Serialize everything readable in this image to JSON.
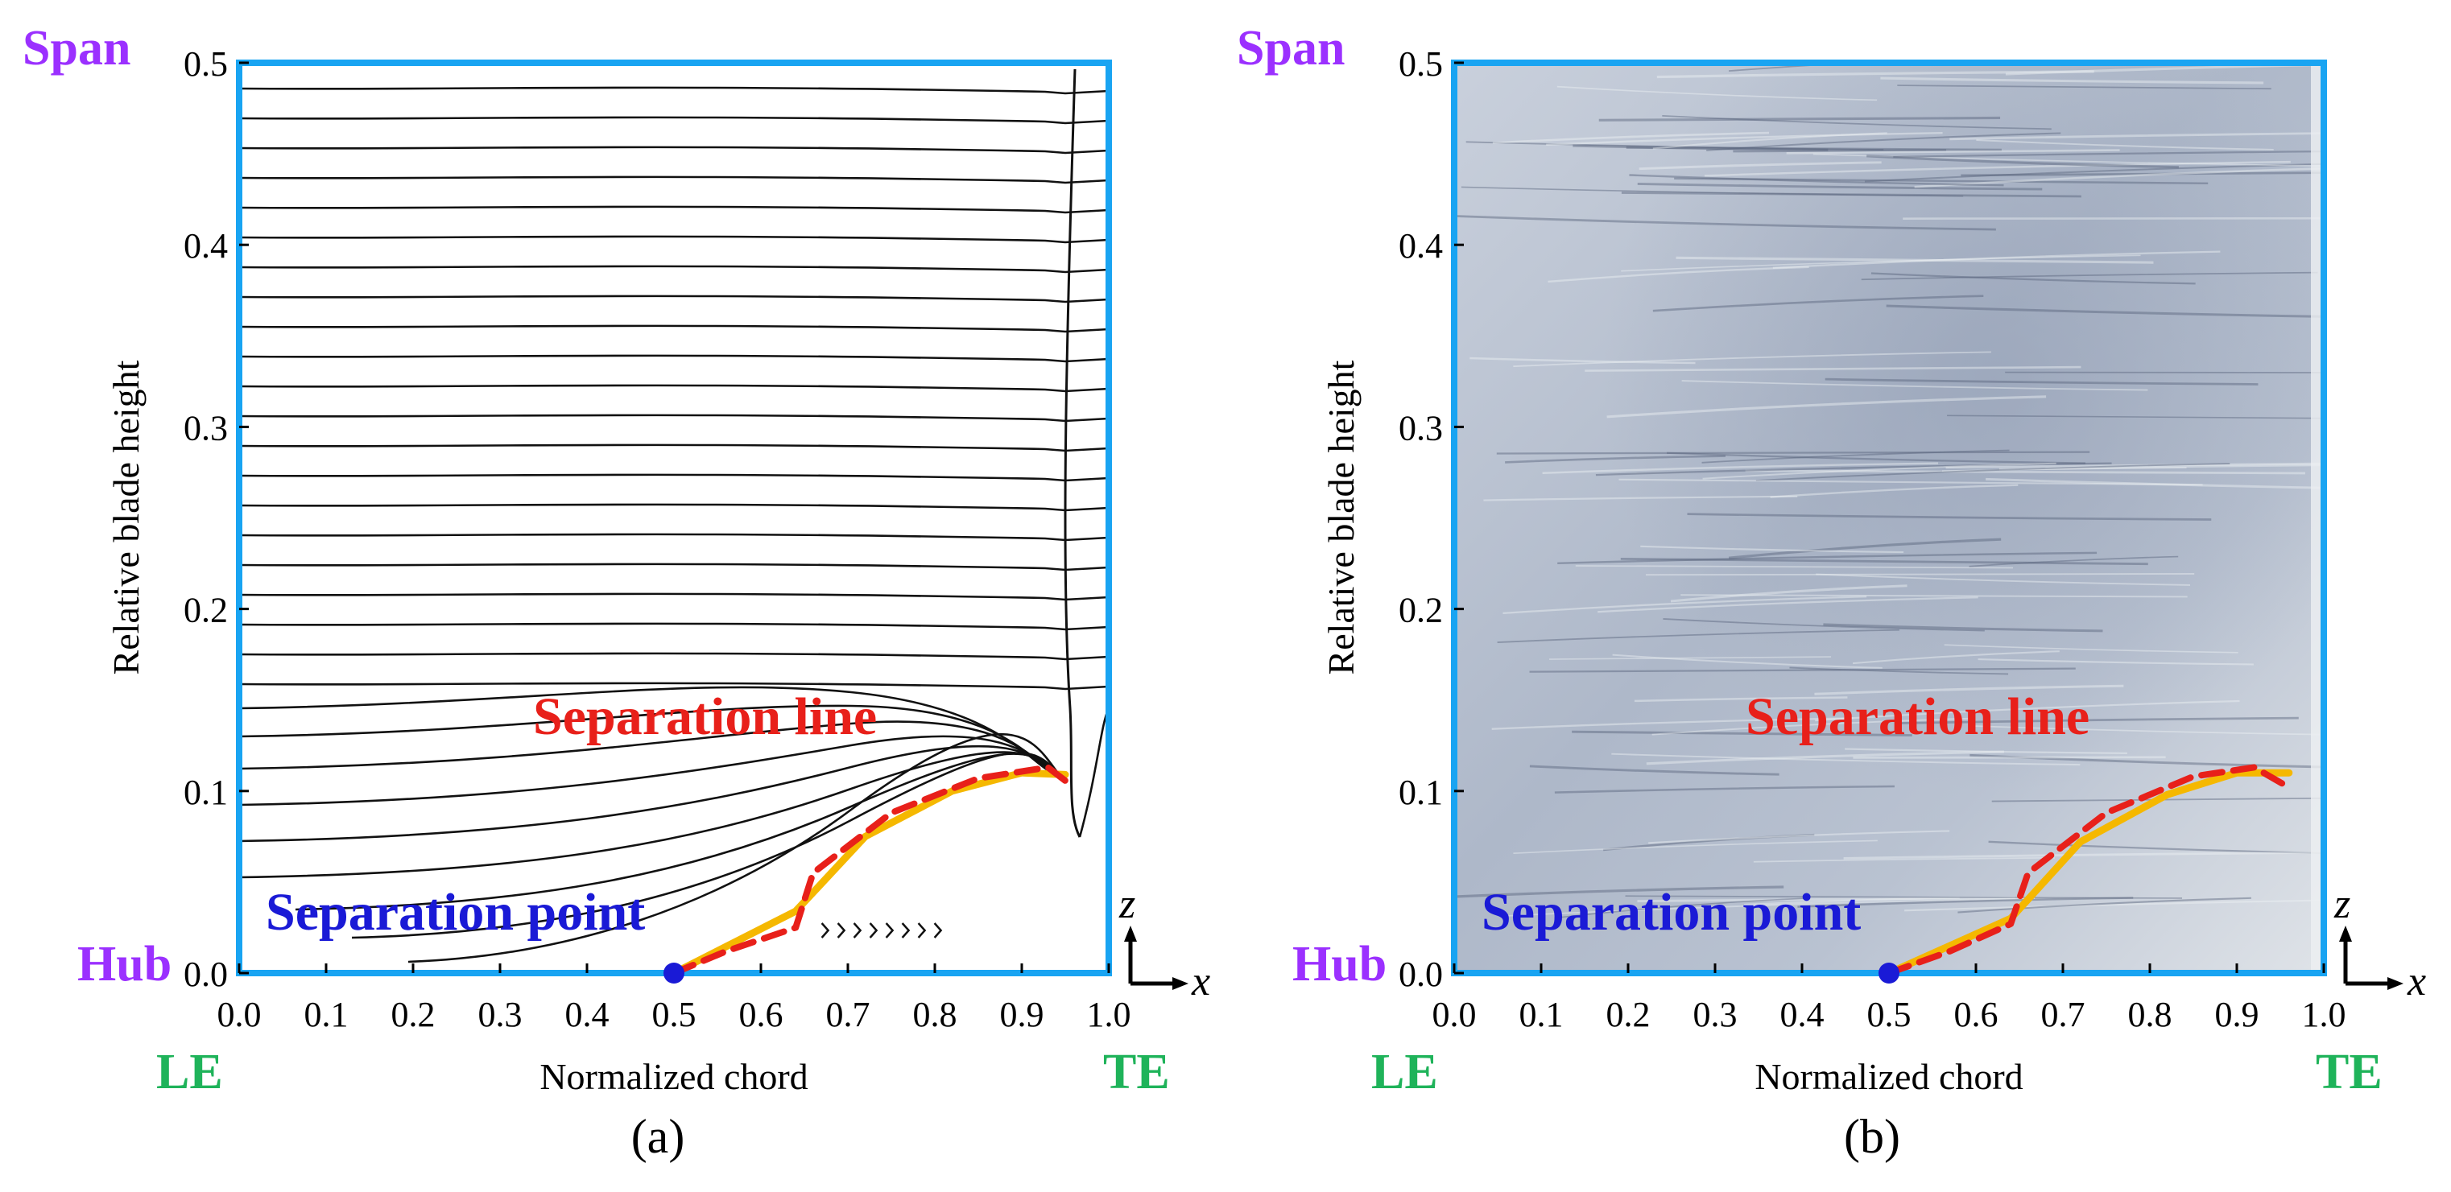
{
  "chart_data": [
    {
      "type": "line",
      "panel_label": "(a)",
      "xlabel": "Normalized chord",
      "ylabel": "Relative blade height",
      "xlim": [
        0.0,
        1.0
      ],
      "ylim": [
        0.0,
        0.5
      ],
      "xticks": [
        "0.0",
        "0.1",
        "0.2",
        "0.3",
        "0.4",
        "0.5",
        "0.6",
        "0.7",
        "0.8",
        "0.9",
        "1.0"
      ],
      "yticks": [
        "0.0",
        "0.1",
        "0.2",
        "0.3",
        "0.4",
        "0.5"
      ],
      "corner_labels": {
        "span": "Span",
        "hub": "Hub",
        "le": "LE",
        "te": "TE"
      },
      "annotations": {
        "separation_line": "Separation line",
        "separation_point": "Separation point"
      },
      "axes_indicator": {
        "vertical": "z",
        "horizontal": "x"
      },
      "background": "CFD surface streamlines",
      "separation_point": {
        "x": 0.5,
        "y": 0.0
      },
      "series": [
        {
          "name": "Separation line (yellow)",
          "color": "#f5b800",
          "x": [
            0.5,
            0.64,
            0.72,
            0.82,
            0.9,
            0.95
          ],
          "y": [
            0.0,
            0.034,
            0.075,
            0.1,
            0.11,
            0.109
          ]
        },
        {
          "name": "Separation line (red dashed)",
          "color": "#e8201a",
          "x": [
            0.5,
            0.56,
            0.64,
            0.66,
            0.75,
            0.85,
            0.93,
            0.96
          ],
          "y": [
            0.0,
            0.012,
            0.025,
            0.055,
            0.088,
            0.107,
            0.113,
            0.102
          ]
        }
      ]
    },
    {
      "type": "line",
      "panel_label": "(b)",
      "xlabel": "Normalized chord",
      "ylabel": "Relative blade height",
      "xlim": [
        0.0,
        1.0
      ],
      "ylim": [
        0.0,
        0.5
      ],
      "xticks": [
        "0.0",
        "0.1",
        "0.2",
        "0.3",
        "0.4",
        "0.5",
        "0.6",
        "0.7",
        "0.8",
        "0.9",
        "1.0"
      ],
      "yticks": [
        "0.0",
        "0.1",
        "0.2",
        "0.3",
        "0.4",
        "0.5"
      ],
      "corner_labels": {
        "span": "Span",
        "hub": "Hub",
        "le": "LE",
        "te": "TE"
      },
      "annotations": {
        "separation_line": "Separation line",
        "separation_point": "Separation point"
      },
      "axes_indicator": {
        "vertical": "z",
        "horizontal": "x"
      },
      "background": "oil-flow visualization photograph",
      "separation_point": {
        "x": 0.5,
        "y": 0.0
      },
      "series": [
        {
          "name": "Separation line (yellow)",
          "color": "#f5b800",
          "x": [
            0.5,
            0.64,
            0.72,
            0.82,
            0.9,
            0.96
          ],
          "y": [
            0.0,
            0.03,
            0.072,
            0.098,
            0.11,
            0.11
          ]
        },
        {
          "name": "Separation line (red dashed)",
          "color": "#e8201a",
          "x": [
            0.5,
            0.57,
            0.64,
            0.66,
            0.75,
            0.85,
            0.92,
            0.96
          ],
          "y": [
            0.0,
            0.012,
            0.027,
            0.055,
            0.088,
            0.108,
            0.113,
            0.102
          ]
        }
      ]
    }
  ],
  "colors": {
    "frame": "#19a4f2",
    "streamline": "#111111",
    "yellow": "#f5b800",
    "red": "#e8201a",
    "point": "#1a1ad6",
    "purple": "#9b30ff",
    "green": "#1fb35a",
    "photo_base": "#bcc5d3"
  }
}
